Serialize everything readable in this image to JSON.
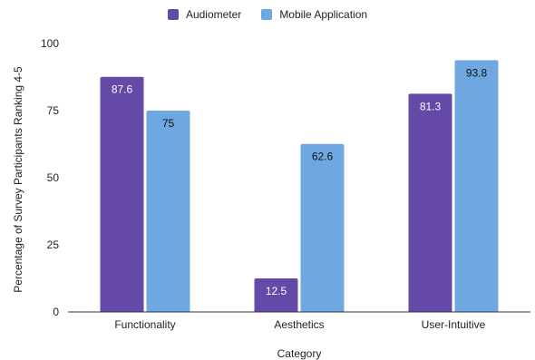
{
  "chart_data": {
    "type": "bar",
    "categories": [
      "Functionality",
      "Aesthetics",
      "User-Intuitive"
    ],
    "series": [
      {
        "name": "Audiometer",
        "values": [
          87.6,
          12.5,
          81.3
        ],
        "color": "#6549a8"
      },
      {
        "name": "Mobile Application",
        "values": [
          75,
          62.6,
          93.8
        ],
        "color": "#6fa8e0"
      }
    ],
    "xlabel": "Category",
    "ylabel": "Percentage of Survey Participants Ranking 4-5",
    "ylim": [
      0,
      100
    ],
    "yticks": [
      0,
      25,
      50,
      75,
      100
    ],
    "grid": false,
    "legend_position": "top"
  }
}
